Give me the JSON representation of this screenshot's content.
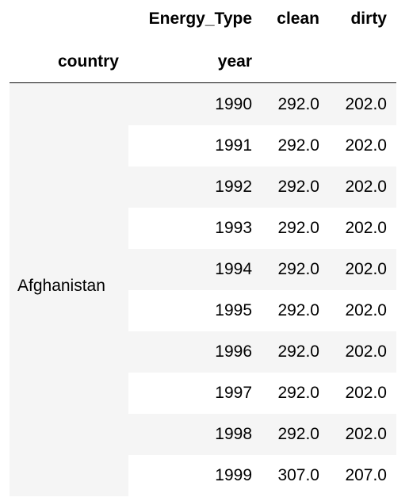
{
  "table": {
    "column_axis_name": "Energy_Type",
    "columns": [
      "clean",
      "dirty"
    ],
    "index_names": [
      "country",
      "year"
    ],
    "country": "Afghanistan",
    "rows": [
      [
        1990,
        "292.0",
        "202.0"
      ],
      [
        1991,
        "292.0",
        "202.0"
      ],
      [
        1992,
        "292.0",
        "202.0"
      ],
      [
        1993,
        "292.0",
        "202.0"
      ],
      [
        1994,
        "292.0",
        "202.0"
      ],
      [
        1995,
        "292.0",
        "202.0"
      ],
      [
        1996,
        "292.0",
        "202.0"
      ],
      [
        1997,
        "292.0",
        "202.0"
      ],
      [
        1998,
        "292.0",
        "202.0"
      ],
      [
        1999,
        "307.0",
        "207.0"
      ]
    ]
  }
}
